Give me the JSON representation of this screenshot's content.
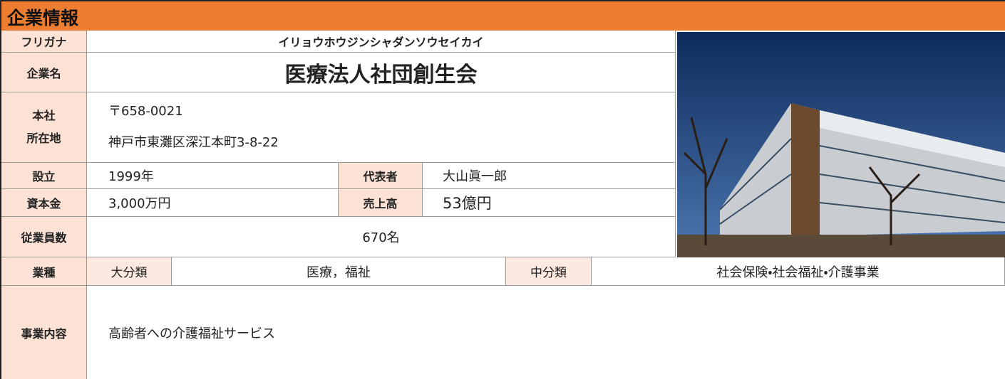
{
  "header": {
    "title": "企業情報"
  },
  "fields": {
    "furigana": {
      "label": "フリガナ",
      "value": "イリョウホウジンシャダンソウセイカイ"
    },
    "company_name": {
      "label": "企業名",
      "value": "医療法人社団創生会"
    },
    "address": {
      "label_lines": [
        "本社",
        "所在地"
      ],
      "postal_code": "〒658-0021",
      "address": "神戸市東灘区深江本町3-8-22"
    },
    "established": {
      "label": "設立",
      "value": "1999年"
    },
    "representative": {
      "label": "代表者",
      "value": "大山眞一郎"
    },
    "capital": {
      "label": "資本金",
      "value": "3,000万円"
    },
    "sales": {
      "label": "売上高",
      "value": "53億円"
    },
    "employees": {
      "label": "従業員数",
      "value": "670名"
    },
    "industry": {
      "label": "業種",
      "major_label": "大分類",
      "major_value": "医療，福祉",
      "middle_label": "中分類",
      "middle_value": "社会保険・社会福祉・介護事業"
    },
    "business": {
      "label": "事業内容",
      "value": "高齢者への介護福祉サービス"
    }
  }
}
